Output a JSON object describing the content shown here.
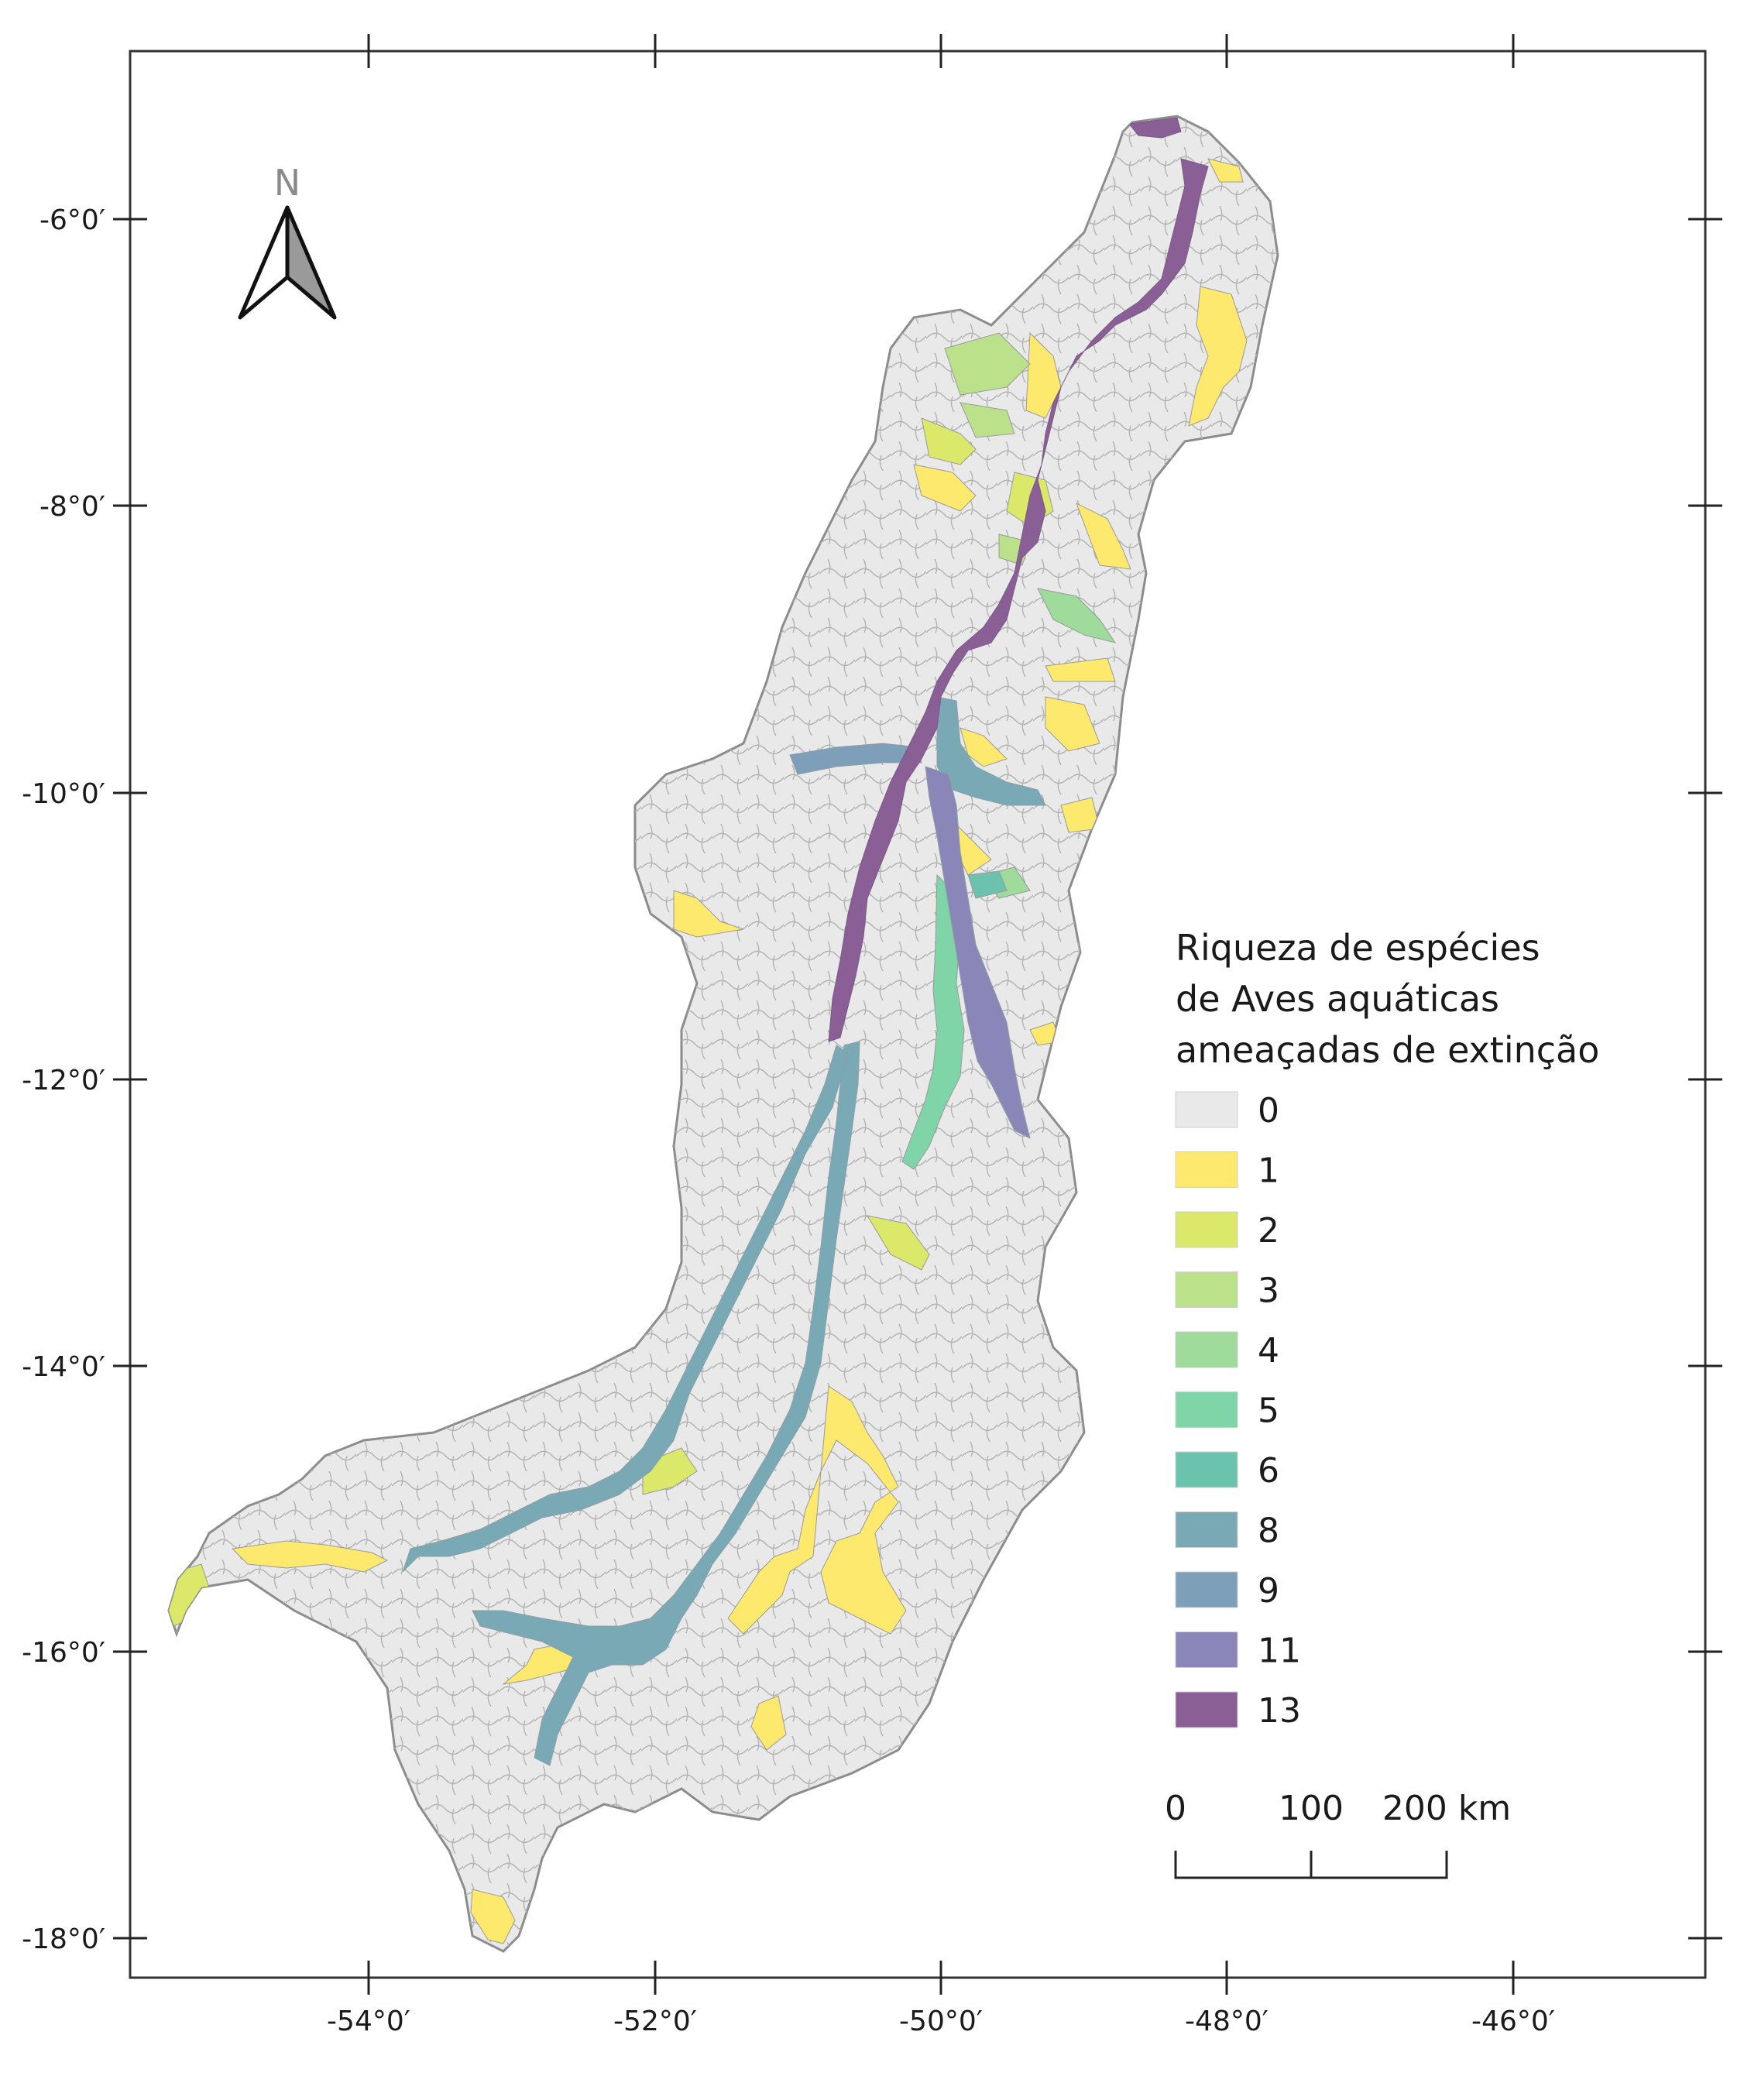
{
  "map": {
    "latitude_labels": [
      "-6°0′",
      "-8°0′",
      "-10°0′",
      "-12°0′",
      "-14°0′",
      "-16°0′",
      "-18°0′"
    ],
    "longitude_labels": [
      "-54°0′",
      "-52°0′",
      "-50°0′",
      "-48°0′",
      "-46°0′"
    ],
    "north_arrow_label": "N",
    "basin_fill": "#e9e9e9",
    "basin_outline": "#8c8c8c"
  },
  "legend": {
    "title_lines": [
      "Riqueza de espécies",
      "de Aves aquáticas",
      "ameaçadas de extinção"
    ],
    "classes": [
      {
        "label": "0",
        "color": "#e9e9e9"
      },
      {
        "label": "1",
        "color": "#fde96e"
      },
      {
        "label": "2",
        "color": "#dbe86a"
      },
      {
        "label": "3",
        "color": "#bbe28a"
      },
      {
        "label": "4",
        "color": "#9fdb9a"
      },
      {
        "label": "5",
        "color": "#7fd4a8"
      },
      {
        "label": "6",
        "color": "#6cc3ad"
      },
      {
        "label": "8",
        "color": "#78a9b5"
      },
      {
        "label": "9",
        "color": "#7e9fb9"
      },
      {
        "label": "11",
        "color": "#8b86b8"
      },
      {
        "label": "13",
        "color": "#8a5f95"
      }
    ]
  },
  "scale_bar": {
    "labels": [
      "0",
      "100",
      "200 km"
    ]
  }
}
